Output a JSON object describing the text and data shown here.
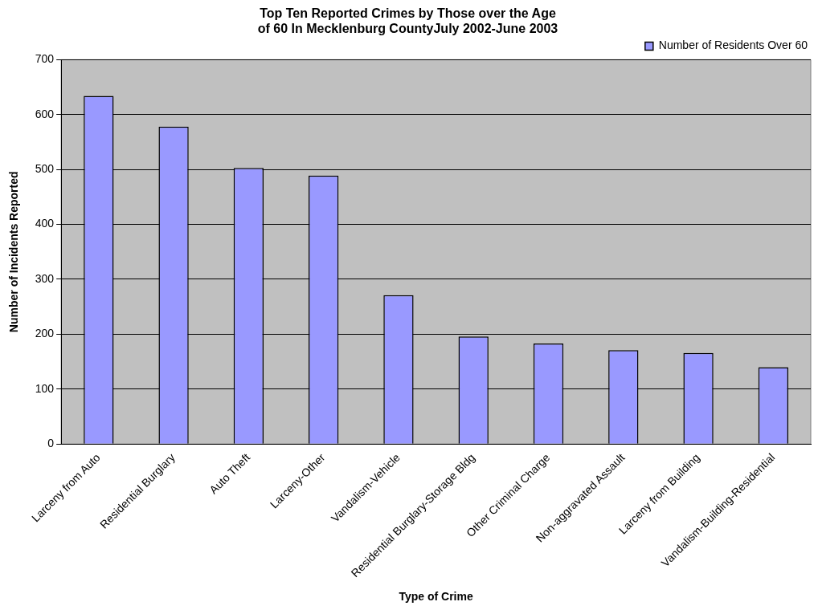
{
  "chart_data": {
    "type": "bar",
    "title": "Top Ten Reported Crimes by Those over the Age of 60 In Mecklenburg CountyJuly 2002-June 2003",
    "xlabel": "Type of Crime",
    "ylabel": "Number of Incidents Reported",
    "categories": [
      "Larceny from Auto",
      "Residential Burglary",
      "Auto Theft",
      "Larceny-Other",
      "Vandalism-Vehicle",
      "Residential Burglary-Storage Bldg",
      "Other Criminal Charge",
      "Non-aggravated Assault",
      "Larceny from Building",
      "Vandalism-Building-Residential"
    ],
    "series": [
      {
        "name": "Number of Residents Over 60",
        "color": "#9999ff",
        "values": [
          634,
          578,
          503,
          489,
          271,
          196,
          183,
          171,
          166,
          140
        ]
      }
    ],
    "ylim": [
      0,
      700
    ],
    "yticks": [
      0,
      100,
      200,
      300,
      400,
      500,
      600,
      700
    ],
    "grid": "y",
    "legend": "top right"
  }
}
